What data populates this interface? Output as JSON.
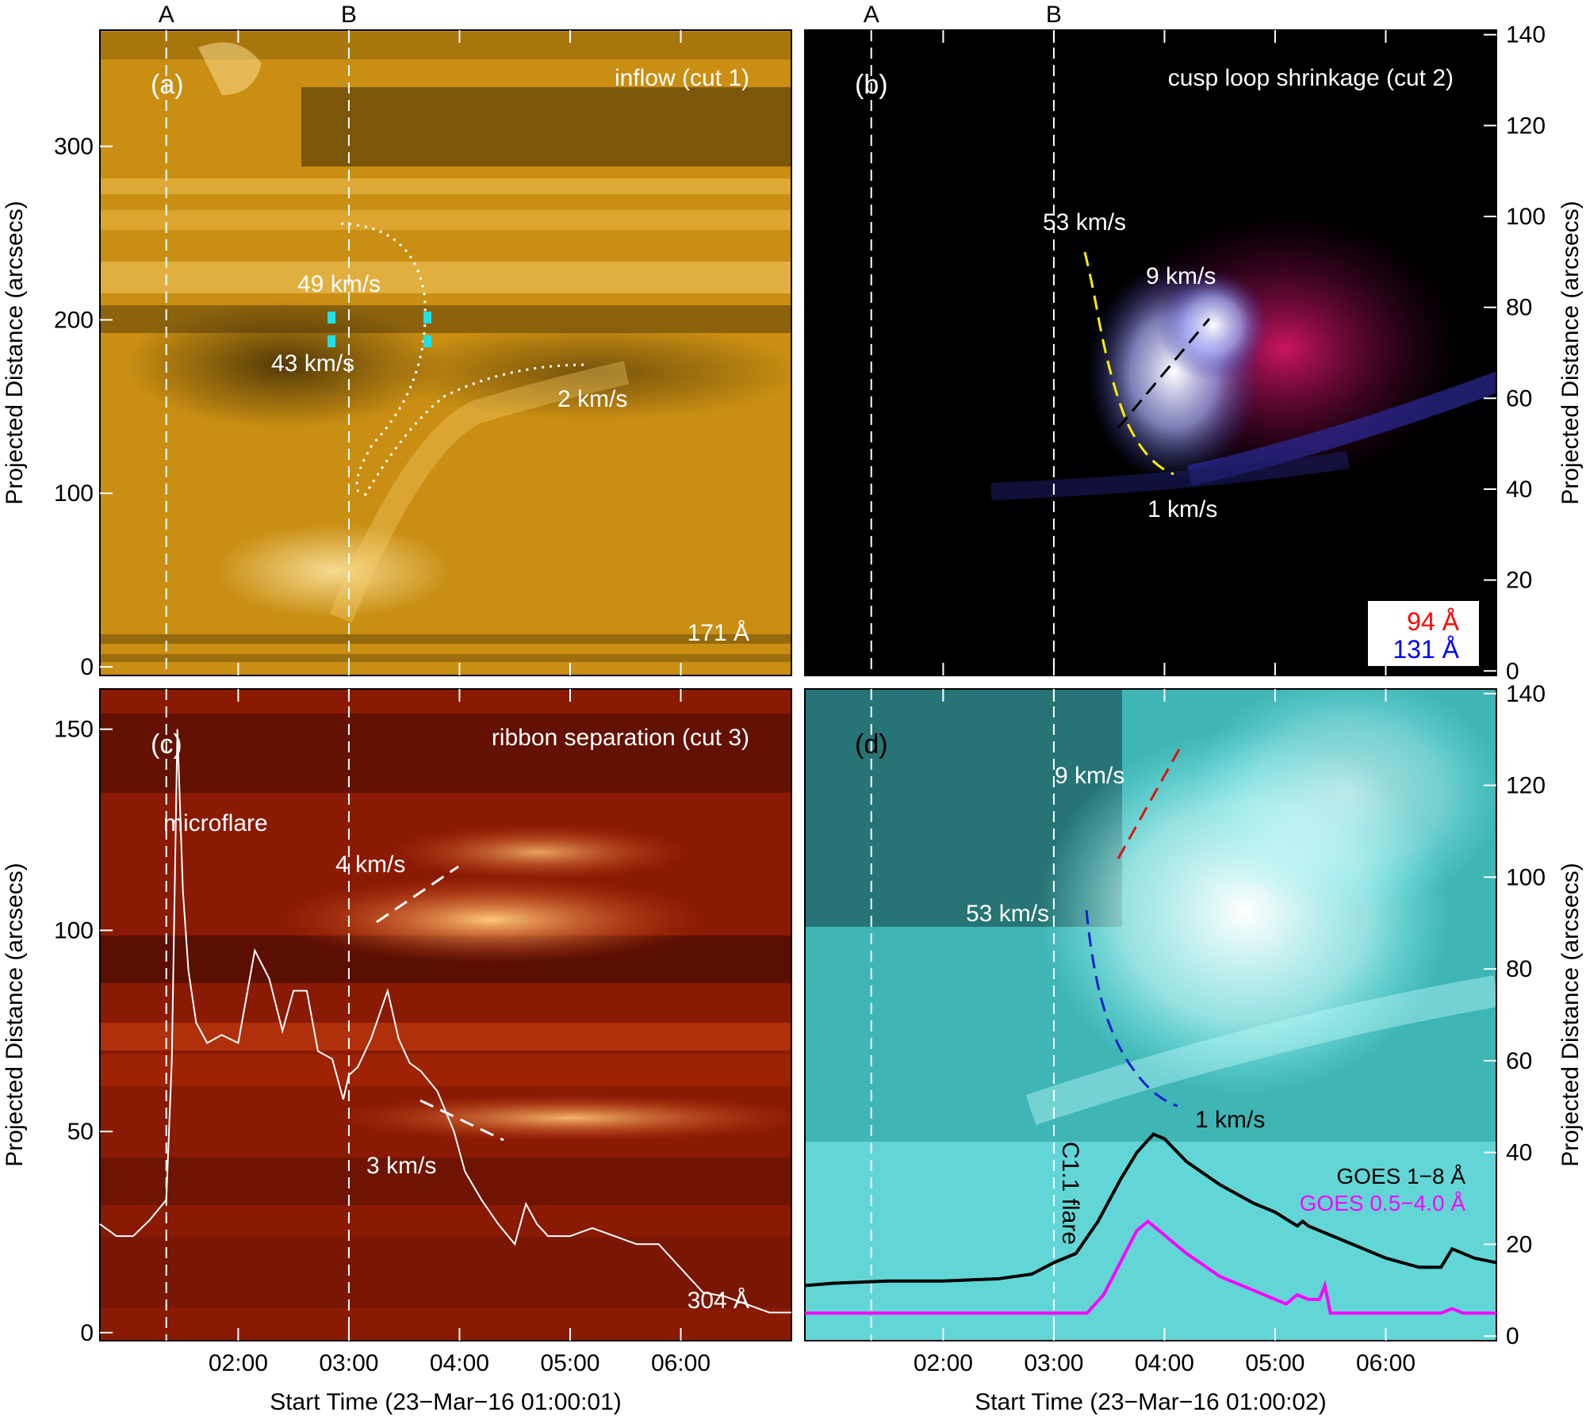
{
  "chart_data": [
    {
      "type": "heatmap",
      "panel_label": "(a)",
      "title": "inflow (cut 1)",
      "wavelength": "171 Å",
      "ylabel": "Projected Distance (arcsecs)",
      "yticks": [
        0,
        100,
        200,
        300
      ],
      "ylim": [
        -5,
        367
      ],
      "xticks": [
        "02:00",
        "03:00",
        "04:00",
        "05:00",
        "06:00"
      ],
      "xlim": [
        0.75,
        7.0
      ],
      "markers": [
        {
          "label": "A",
          "x": 1.35
        },
        {
          "label": "B",
          "x": 3.0
        }
      ],
      "annotations": [
        "49 km/s",
        "43 km/s",
        "2 km/s"
      ],
      "colors": {
        "background": "#c98e12",
        "highlight": "#ffe39a",
        "dark": "#4a3208",
        "cyan": "#22e0e6"
      }
    },
    {
      "type": "heatmap",
      "panel_label": "(b)",
      "title": "cusp loop shrinkage (cut 2)",
      "ylabel": "Projected Distance (arcsecs)",
      "yticks": [
        0,
        20,
        40,
        60,
        80,
        100,
        120,
        140
      ],
      "ylim": [
        -1,
        141
      ],
      "markers": [
        {
          "label": "A",
          "x": 1.35
        },
        {
          "label": "B",
          "x": 3.0
        }
      ],
      "annotations": [
        "53 km/s",
        "9 km/s",
        "1 km/s"
      ],
      "legend": [
        {
          "label": "94 Å",
          "color": "#ff0000"
        },
        {
          "label": "131 Å",
          "color": "#0000ff"
        }
      ],
      "legend_position": "bottom-right"
    },
    {
      "type": "heatmap",
      "panel_label": "(c)",
      "title": "ribbon separation (cut 3)",
      "wavelength": "304 Å",
      "xlabel": "Start Time (23−Mar−16 01:00:01)",
      "ylabel": "Projected Distance (arcsecs)",
      "yticks": [
        0,
        50,
        100,
        150
      ],
      "ylim": [
        -2,
        160
      ],
      "xticks": [
        "02:00",
        "03:00",
        "04:00",
        "05:00",
        "06:00"
      ],
      "xlim": [
        0.75,
        7.0
      ],
      "annotations": [
        "microflare",
        "4 km/s",
        "3 km/s"
      ],
      "lightcurve": {
        "x": [
          0.75,
          0.9,
          1.05,
          1.2,
          1.35,
          1.4,
          1.45,
          1.5,
          1.55,
          1.62,
          1.72,
          1.85,
          2.0,
          2.15,
          2.28,
          2.4,
          2.5,
          2.62,
          2.72,
          2.85,
          2.95,
          3.0,
          3.08,
          3.2,
          3.35,
          3.45,
          3.55,
          3.65,
          3.8,
          3.95,
          4.05,
          4.2,
          4.35,
          4.5,
          4.6,
          4.7,
          4.8,
          5.0,
          5.2,
          5.4,
          5.6,
          5.8,
          6.0,
          6.2,
          6.4,
          6.6,
          6.8,
          7.0
        ],
        "y": [
          27,
          24,
          24,
          28,
          33,
          68,
          150,
          110,
          90,
          77,
          72,
          74,
          72,
          95,
          88,
          75,
          85,
          85,
          70,
          68,
          58,
          64,
          66,
          73,
          85,
          73,
          67,
          65,
          60,
          50,
          40,
          33,
          27,
          22,
          32,
          27,
          24,
          24,
          26,
          24,
          22,
          22,
          16,
          10,
          9,
          7,
          5,
          5
        ]
      }
    },
    {
      "type": "heatmap",
      "panel_label": "(d)",
      "xlabel": "Start Time (23−Mar−16 01:00:02)",
      "ylabel": "Projected Distance (arcsecs)",
      "yticks": [
        0,
        20,
        40,
        60,
        80,
        100,
        120,
        140
      ],
      "ylim": [
        -1,
        141
      ],
      "xticks": [
        "02:00",
        "03:00",
        "04:00",
        "05:00",
        "06:00"
      ],
      "xlim": [
        0.75,
        7.0
      ],
      "annotations": [
        "9 km/s",
        "53 km/s",
        "1 km/s",
        "C1.1 flare"
      ],
      "legend": [
        {
          "label": "GOES 1−8 Å",
          "color": "#000000"
        },
        {
          "label": "GOES 0.5−4.0 Å",
          "color": "#ff00ff"
        }
      ],
      "series": [
        {
          "name": "GOES 1−8 Å",
          "x": [
            0.75,
            1.0,
            1.5,
            2.0,
            2.5,
            2.8,
            3.0,
            3.2,
            3.4,
            3.6,
            3.75,
            3.9,
            4.0,
            4.2,
            4.5,
            4.8,
            5.0,
            5.2,
            5.25,
            5.3,
            5.6,
            6.0,
            6.3,
            6.5,
            6.6,
            6.8,
            7.0
          ],
          "y": [
            11,
            11.5,
            12,
            12,
            12.5,
            13.5,
            16,
            18,
            25,
            34,
            40,
            44,
            43,
            38,
            33,
            29,
            27,
            24,
            25,
            24,
            21,
            17,
            15,
            15,
            19,
            17,
            16
          ]
        },
        {
          "name": "GOES 0.5−4.0 Å",
          "x": [
            0.75,
            2.0,
            3.0,
            3.3,
            3.45,
            3.6,
            3.75,
            3.85,
            3.9,
            4.0,
            4.2,
            4.5,
            4.8,
            5.0,
            5.1,
            5.2,
            5.3,
            5.4,
            5.45,
            5.5,
            5.6,
            6.0,
            6.5,
            6.6,
            6.7,
            7.0
          ],
          "y": [
            5,
            5,
            5,
            5,
            9,
            16,
            23,
            25,
            24,
            22,
            18,
            13,
            10,
            8,
            7,
            9,
            8,
            8,
            11,
            5,
            5,
            5,
            5,
            6,
            5,
            5
          ]
        }
      ]
    }
  ]
}
